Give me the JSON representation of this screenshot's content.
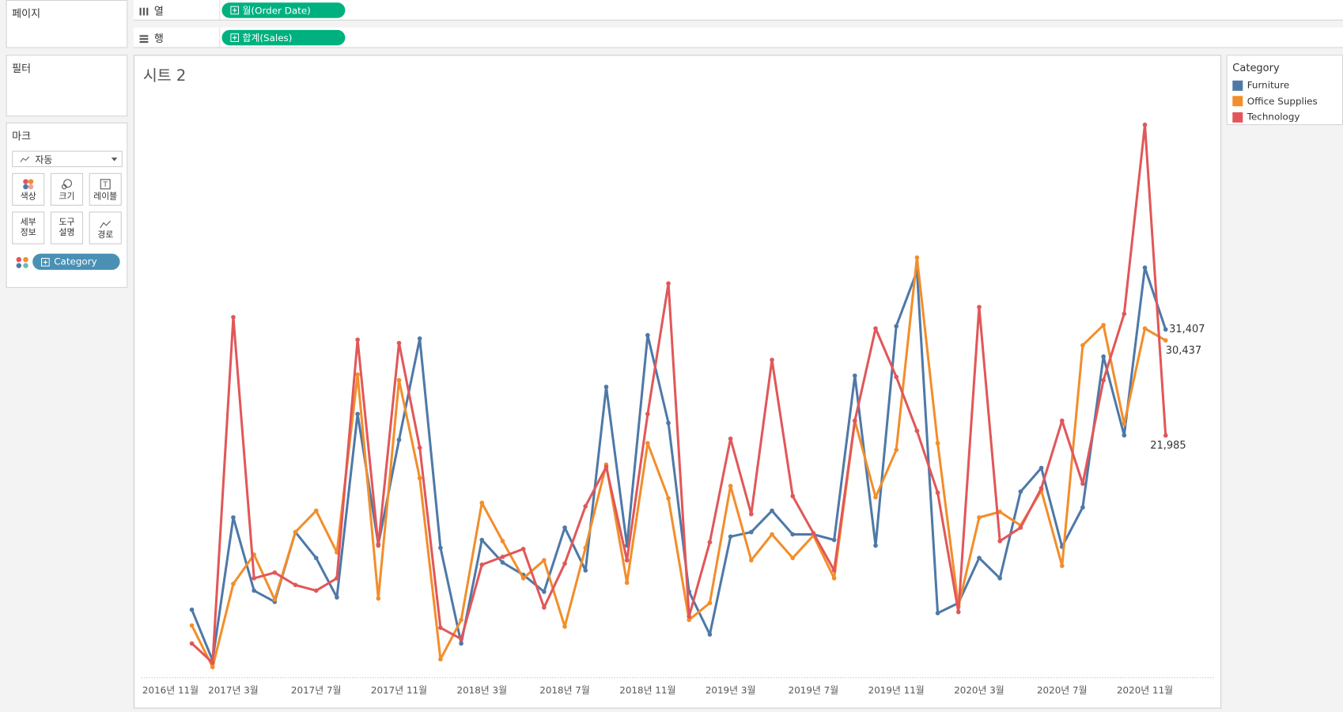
{
  "shelves": {
    "columns": {
      "label": "열",
      "pill": "월(Order Date)"
    },
    "rows": {
      "label": "행",
      "pill": "합계(Sales)"
    }
  },
  "panels": {
    "pages": "페이지",
    "filters": "필터",
    "marks": "마크"
  },
  "marks": {
    "dropdown": "자동",
    "buttons": [
      [
        "색상"
      ],
      [
        "크기"
      ],
      [
        "레이블"
      ],
      [
        "세부",
        "정보"
      ],
      [
        "도구",
        "설명"
      ],
      [
        "경로"
      ]
    ],
    "pill": "Category"
  },
  "legend": {
    "title": "Category"
  },
  "chart_data": {
    "type": "line",
    "title": "시트 2",
    "categories": [
      "2016년 11월",
      null,
      null,
      null,
      "2017년 3월",
      null,
      null,
      null,
      "2017년 7월",
      null,
      null,
      null,
      "2017년 11월",
      null,
      null,
      null,
      "2018년 3월",
      null,
      null,
      null,
      "2018년 7월",
      null,
      null,
      null,
      "2018년 11월",
      null,
      null,
      null,
      "2019년 3월",
      null,
      null,
      null,
      "2019년 7월",
      null,
      null,
      null,
      "2019년 11월",
      null,
      null,
      null,
      "2020년 3월",
      null,
      null,
      null,
      "2020년 7월",
      null,
      null,
      null,
      "2020년 11월",
      null
    ],
    "ylim": [
      0,
      53000
    ],
    "series": [
      {
        "name": "Furniture",
        "color": "#4e79a7",
        "values": [
          null,
          null,
          6500,
          2000,
          14700,
          8200,
          7200,
          13400,
          11100,
          7600,
          23900,
          12300,
          21600,
          30600,
          12000,
          3500,
          12700,
          10700,
          9600,
          8100,
          13800,
          10000,
          26300,
          12200,
          30900,
          23100,
          8100,
          4300,
          13000,
          13400,
          15300,
          13200,
          13200,
          12700,
          27300,
          12200,
          31700,
          36600,
          6200,
          7100,
          11100,
          9300,
          17000,
          19100,
          12100,
          15600,
          29000,
          22000,
          36900,
          31407
        ],
        "value_labels": [
          null,
          null,
          null,
          null,
          null,
          null,
          null,
          null,
          null,
          null,
          null,
          null,
          null,
          null,
          null,
          null,
          null,
          null,
          null,
          null,
          null,
          null,
          null,
          null,
          null,
          null,
          null,
          null,
          null,
          null,
          null,
          null,
          null,
          null,
          null,
          null,
          null,
          null,
          null,
          null,
          null,
          null,
          null,
          null,
          null,
          null,
          null,
          null,
          null,
          "31,407"
        ]
      },
      {
        "name": "Office Supplies",
        "color": "#f28e2b",
        "values": [
          null,
          null,
          5100,
          1400,
          8800,
          11400,
          7400,
          13400,
          15300,
          11600,
          27400,
          7500,
          26900,
          18200,
          2100,
          5600,
          16000,
          12600,
          9300,
          10900,
          5000,
          12000,
          19400,
          8900,
          21300,
          16400,
          5600,
          7100,
          17500,
          10900,
          13200,
          11100,
          13100,
          9300,
          23300,
          16500,
          20700,
          37800,
          21300,
          6800,
          14700,
          15200,
          14000,
          17100,
          10400,
          30000,
          31800,
          23000,
          31500,
          30437
        ],
        "value_labels": [
          null,
          null,
          null,
          null,
          null,
          null,
          null,
          null,
          null,
          null,
          null,
          null,
          null,
          null,
          null,
          null,
          null,
          null,
          null,
          null,
          null,
          null,
          null,
          null,
          null,
          null,
          null,
          null,
          null,
          null,
          null,
          null,
          null,
          null,
          null,
          null,
          null,
          null,
          null,
          null,
          null,
          null,
          null,
          null,
          null,
          null,
          null,
          null,
          null,
          "30,437"
        ]
      },
      {
        "name": "Technology",
        "color": "#e15759",
        "values": [
          null,
          null,
          3500,
          1800,
          32500,
          9300,
          9800,
          8700,
          8200,
          9300,
          30500,
          12200,
          30200,
          20900,
          4900,
          3900,
          10500,
          11200,
          11900,
          6700,
          10600,
          15700,
          19200,
          10900,
          23900,
          35500,
          5900,
          12500,
          21700,
          15000,
          28700,
          16600,
          13300,
          10000,
          23300,
          31500,
          27200,
          22400,
          16900,
          6300,
          33400,
          12600,
          13800,
          17300,
          23300,
          17700,
          26900,
          32800,
          49600,
          21985
        ],
        "value_labels": [
          null,
          null,
          null,
          null,
          null,
          null,
          null,
          null,
          null,
          null,
          null,
          null,
          null,
          null,
          null,
          null,
          null,
          null,
          null,
          null,
          null,
          null,
          null,
          null,
          null,
          null,
          null,
          null,
          null,
          null,
          null,
          null,
          null,
          null,
          null,
          null,
          null,
          null,
          null,
          null,
          null,
          null,
          null,
          null,
          null,
          null,
          null,
          null,
          null,
          "21,985"
        ]
      }
    ]
  }
}
